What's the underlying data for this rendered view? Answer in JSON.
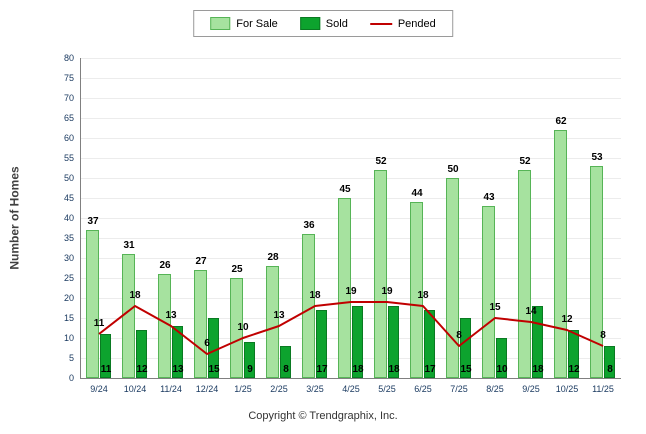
{
  "legend": {
    "for_sale": "For Sale",
    "sold": "Sold",
    "pended": "Pended"
  },
  "ylabel": "Number of Homes",
  "footer": "Copyright © Trendgraphix, Inc.",
  "colors": {
    "for_sale_fill": "#A6E29F",
    "for_sale_border": "#56B456",
    "sold_fill": "#0DA32E",
    "sold_border": "#0A7A22",
    "pended_line": "#C00000"
  },
  "chart_data": {
    "type": "bar",
    "title": "",
    "xlabel": "",
    "ylabel": "Number of Homes",
    "categories": [
      "9/24",
      "10/24",
      "11/24",
      "12/24",
      "1/25",
      "2/25",
      "3/25",
      "4/25",
      "5/25",
      "6/25",
      "7/25",
      "8/25",
      "9/25",
      "10/25",
      "11/25"
    ],
    "series": [
      {
        "name": "For Sale",
        "type": "bar",
        "values": [
          37,
          31,
          26,
          27,
          25,
          28,
          36,
          45,
          52,
          44,
          50,
          43,
          52,
          62,
          53
        ]
      },
      {
        "name": "Sold",
        "type": "bar",
        "values": [
          11,
          12,
          13,
          15,
          9,
          8,
          17,
          18,
          18,
          17,
          15,
          10,
          18,
          12,
          8
        ]
      },
      {
        "name": "Pended",
        "type": "line",
        "values": [
          11,
          18,
          13,
          6,
          10,
          13,
          18,
          19,
          19,
          18,
          8,
          15,
          14,
          12,
          8
        ]
      }
    ],
    "ylim": [
      0,
      80
    ],
    "ytick_step": 5,
    "grid": true,
    "legend_position": "top"
  }
}
